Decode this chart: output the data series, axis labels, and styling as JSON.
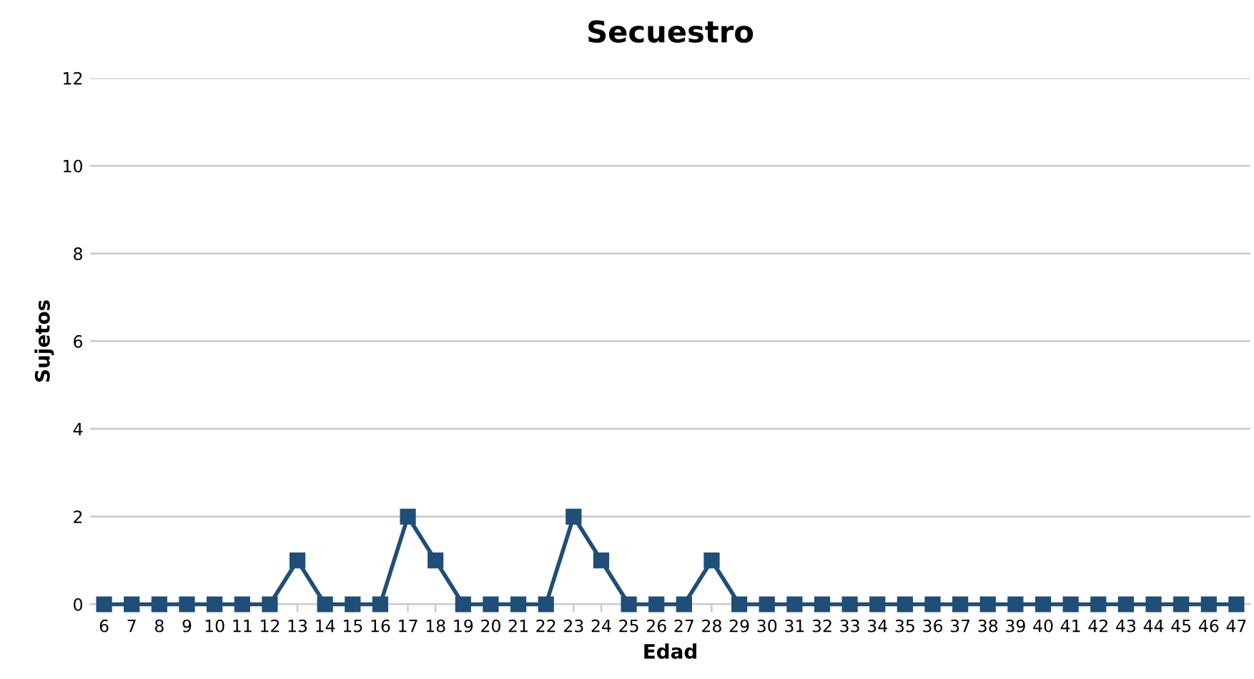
{
  "chart_data": {
    "type": "line",
    "title": "Secuestro",
    "xlabel": "Edad",
    "ylabel": "Sujetos",
    "categories": [
      "6",
      "7",
      "8",
      "9",
      "10",
      "11",
      "12",
      "13",
      "14",
      "15",
      "16",
      "17",
      "18",
      "19",
      "20",
      "21",
      "22",
      "23",
      "24",
      "25",
      "26",
      "27",
      "28",
      "29",
      "30",
      "31",
      "32",
      "33",
      "34",
      "35",
      "36",
      "37",
      "38",
      "39",
      "40",
      "41",
      "42",
      "43",
      "44",
      "45",
      "46",
      "47"
    ],
    "series": [
      {
        "color": "#1f4e79",
        "values": [
          0,
          0,
          0,
          0,
          0,
          0,
          0,
          1,
          0,
          0,
          0,
          2,
          1,
          0,
          0,
          0,
          0,
          2,
          1,
          0,
          0,
          0,
          1,
          0,
          0,
          0,
          0,
          0,
          0,
          0,
          0,
          0,
          0,
          0,
          0,
          0,
          0,
          0,
          0,
          0,
          0,
          0
        ]
      }
    ],
    "ylim": [
      0,
      12
    ],
    "yticks": [
      0,
      2,
      4,
      6,
      8,
      10,
      12
    ],
    "grid": "y",
    "legend": false,
    "marker": "square",
    "line_style": "solid"
  }
}
